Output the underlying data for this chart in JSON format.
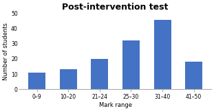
{
  "title": "Post-intervention test",
  "categories": [
    "0–9",
    "10–20",
    "21–24",
    "25–30",
    "31–40",
    "41–50"
  ],
  "values": [
    11,
    13,
    20,
    32,
    46,
    18
  ],
  "bar_color": "#4472C4",
  "xlabel": "Mark range",
  "ylabel": "Number of students",
  "ylim": [
    0,
    50
  ],
  "yticks": [
    0,
    10,
    20,
    30,
    40,
    50
  ],
  "background_color": "#ffffff",
  "title_fontsize": 9,
  "axis_label_fontsize": 6,
  "tick_fontsize": 5.5,
  "bar_width": 0.55
}
